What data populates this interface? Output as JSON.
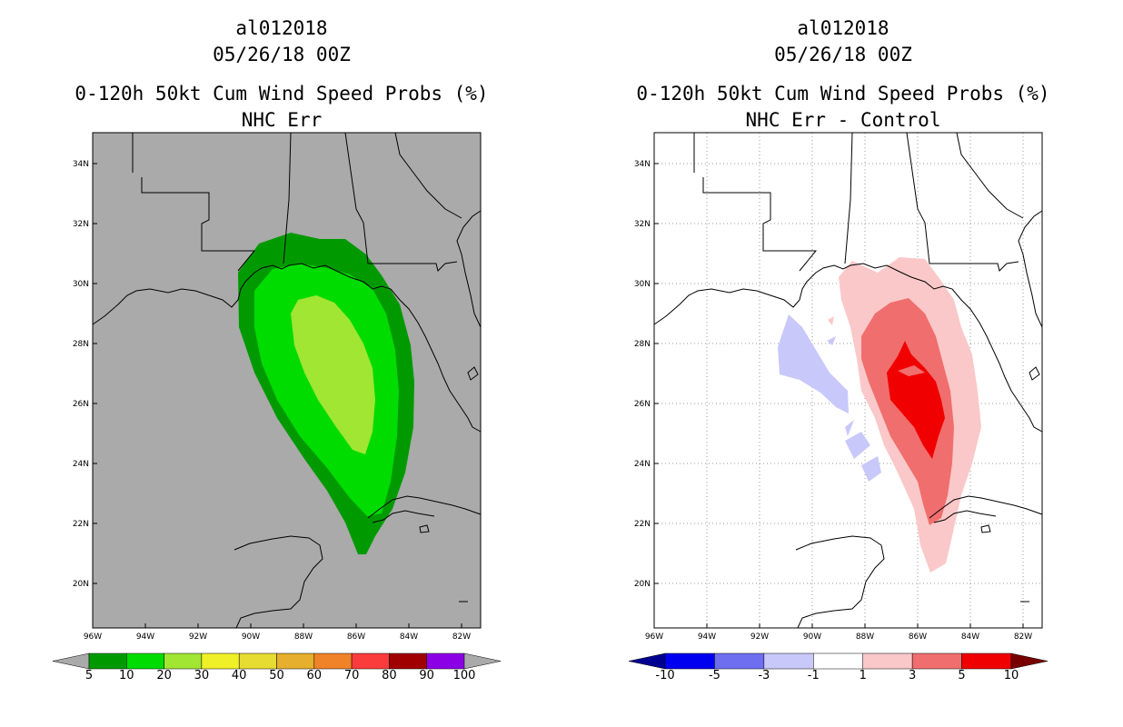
{
  "left_panel": {
    "storm_id": "al012018",
    "datetime": "05/26/18 00Z",
    "title": "0-120h 50kt Cum Wind Speed Probs (%)",
    "subtitle": "NHC Err",
    "background_color": "#aaaaaa",
    "colorbar": {
      "labels": [
        "5",
        "10",
        "20",
        "30",
        "40",
        "50",
        "60",
        "70",
        "80",
        "90",
        "100"
      ],
      "colors": [
        "#009a00",
        "#00dc00",
        "#a0e632",
        "#f0f028",
        "#e6dc32",
        "#e6af2d",
        "#f08228",
        "#fa3c3c",
        "#a00000",
        "#8c00e6"
      ],
      "end_colors": [
        "#aaaaaa",
        "#aaaaaa"
      ]
    }
  },
  "right_panel": {
    "storm_id": "al012018",
    "datetime": "05/26/18 00Z",
    "title": "0-120h 50kt Cum Wind Speed Probs (%)",
    "subtitle": "NHC Err - Control",
    "background_color": "#ffffff",
    "colorbar": {
      "labels": [
        "-10",
        "-5",
        "-3",
        "-1",
        "1",
        "3",
        "5",
        "10"
      ],
      "colors": [
        "#0000f0",
        "#6e6ef0",
        "#c8c8fa",
        "#ffffff",
        "#fac8c8",
        "#f06e6e",
        "#f00000"
      ],
      "end_colors": [
        "#000090",
        "#780000"
      ]
    }
  },
  "axes": {
    "lon_labels": [
      "96W",
      "94W",
      "92W",
      "90W",
      "88W",
      "86W",
      "84W",
      "82W"
    ],
    "lat_labels": [
      "20N",
      "22N",
      "24N",
      "26N",
      "28N",
      "30N",
      "32N",
      "34N"
    ]
  }
}
